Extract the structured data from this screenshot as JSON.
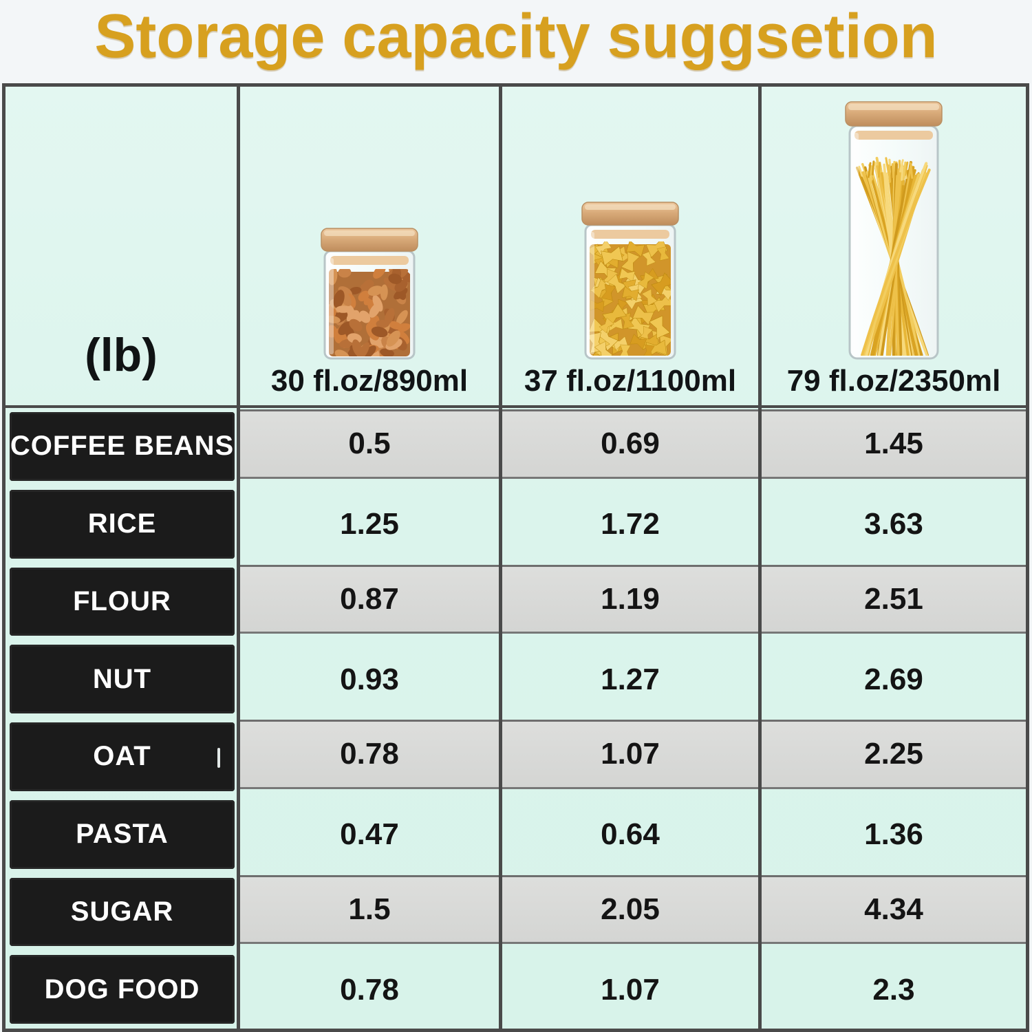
{
  "title": "Storage capacity suggsetion",
  "table": {
    "unit_label": "(lb)",
    "columns": [
      {
        "size_label": "30 fl.oz/890ml",
        "jar_icon": "almond-jar-icon",
        "contents": "almonds"
      },
      {
        "size_label": "37 fl.oz/1100ml",
        "jar_icon": "farfalle-jar-icon",
        "contents": "farfalle pasta"
      },
      {
        "size_label": "79 fl.oz/2350ml",
        "jar_icon": "spaghetti-jar-icon",
        "contents": "spaghetti"
      }
    ],
    "rows": [
      {
        "label": "COFFEE BEANS",
        "values": [
          "0.5",
          "0.69",
          "1.45"
        ]
      },
      {
        "label": "RICE",
        "values": [
          "1.25",
          "1.72",
          "3.63"
        ]
      },
      {
        "label": "FLOUR",
        "values": [
          "0.87",
          "1.19",
          "2.51"
        ]
      },
      {
        "label": "NUT",
        "values": [
          "0.93",
          "1.27",
          "2.69"
        ]
      },
      {
        "label": "OAT",
        "values": [
          "0.78",
          "1.07",
          "2.25"
        ]
      },
      {
        "label": "PASTA",
        "values": [
          "0.47",
          "0.64",
          "1.36"
        ]
      },
      {
        "label": "SUGAR",
        "values": [
          "1.5",
          "2.05",
          "4.34"
        ]
      },
      {
        "label": "DOG FOOD",
        "values": [
          "0.78",
          "1.07",
          "2.3"
        ]
      }
    ]
  },
  "chart_data": {
    "type": "table",
    "title": "Storage capacity suggsetion",
    "unit": "lb",
    "columns": [
      "30 fl.oz/890ml",
      "37 fl.oz/1100ml",
      "79 fl.oz/2350ml"
    ],
    "categories": [
      "COFFEE BEANS",
      "RICE",
      "FLOUR",
      "NUT",
      "OAT",
      "PASTA",
      "SUGAR",
      "DOG FOOD"
    ],
    "series": [
      {
        "name": "30 fl.oz/890ml",
        "values": [
          0.5,
          1.25,
          0.87,
          0.93,
          0.78,
          0.47,
          1.5,
          0.78
        ]
      },
      {
        "name": "37 fl.oz/1100ml",
        "values": [
          0.69,
          1.72,
          1.19,
          1.27,
          1.07,
          0.64,
          2.05,
          1.07
        ]
      },
      {
        "name": "79 fl.oz/2350ml",
        "values": [
          1.45,
          3.63,
          2.51,
          2.69,
          2.25,
          1.36,
          4.34,
          2.3
        ]
      }
    ]
  },
  "colors": {
    "title": "#d7a01f",
    "page_bg": "#f3f6f8",
    "table_bg": "#dbf4ec",
    "grid_line": "#4a4a4a",
    "row_chip_bg": "#1b1b1b",
    "row_chip_text": "#ffffff",
    "gray_bar": "#d7d8d6",
    "bamboo_lid": "#d9ab7a"
  }
}
